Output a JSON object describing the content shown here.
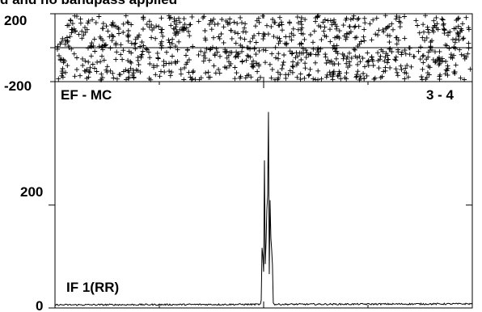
{
  "page_title": "d and no bandpass applied",
  "chart_data": [
    {
      "type": "scatter",
      "panel": "phase",
      "ylim": [
        -200,
        200
      ],
      "ytick_labels": [
        "200",
        "-200"
      ],
      "marker": "+",
      "points_description_n": 900
    },
    {
      "type": "line",
      "panel": "amplitude",
      "baseline_name": "EF - MC",
      "baseline_pair": "3 - 4",
      "if_label": "IF 1(RR)",
      "ylim": [
        0,
        440
      ],
      "ytick_labels": [
        "200",
        "0"
      ],
      "x_range": [
        0,
        1
      ],
      "noise_level": 6,
      "peaks": [
        {
          "x": 0.497,
          "y": 145
        },
        {
          "x": 0.502,
          "y": 280
        },
        {
          "x": 0.507,
          "y": 215
        },
        {
          "x": 0.511,
          "y": 420
        },
        {
          "x": 0.516,
          "y": 235
        },
        {
          "x": 0.52,
          "y": 130
        }
      ]
    }
  ]
}
